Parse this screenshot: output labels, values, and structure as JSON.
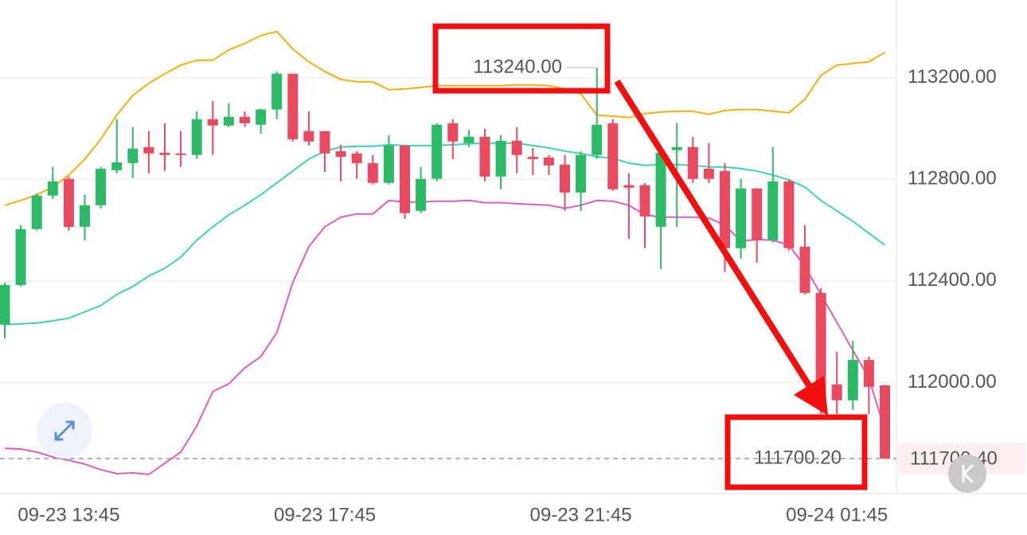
{
  "chart_data": {
    "type": "candlestick",
    "categories": [
      null,
      null,
      null,
      null,
      "09-23 13:45",
      null,
      null,
      null,
      null,
      null,
      null,
      null,
      null,
      null,
      null,
      null,
      null,
      null,
      null,
      null,
      "09-23 17:45",
      null,
      null,
      null,
      null,
      null,
      null,
      null,
      null,
      null,
      null,
      null,
      null,
      null,
      null,
      null,
      "09-23 21:45",
      null,
      null,
      null,
      null,
      null,
      null,
      null,
      null,
      null,
      null,
      null,
      null,
      null,
      null,
      null,
      "09-24 01:45",
      null,
      null,
      null
    ],
    "open": [
      112228,
      112384,
      112604,
      112736,
      112802,
      112613,
      112698,
      112836,
      112864,
      112927,
      112905,
      112902,
      112896,
      113037,
      113012,
      113046,
      113015,
      113075,
      113216,
      112990,
      112990,
      112911,
      112902,
      112864,
      112786,
      112933,
      112676,
      112802,
      113021,
      112943,
      112968,
      112811,
      112952,
      112889,
      112886,
      112858,
      112748,
      112896,
      113021,
      112777,
      112777,
      112613,
      112915,
      112927,
      112842,
      112833,
      112529,
      112764,
      112560,
      112792,
      112535,
      112353,
      111992,
      111930,
      112089,
      111989
    ],
    "high": [
      112394,
      112620,
      112745,
      112849,
      112811,
      112739,
      112849,
      113037,
      113006,
      112990,
      113021,
      112990,
      113068,
      113109,
      113100,
      113068,
      113078,
      113225,
      113216,
      113068,
      112990,
      112936,
      112911,
      112896,
      112974,
      112933,
      112849,
      113021,
      113037,
      112996,
      112999,
      112974,
      113006,
      112924,
      112896,
      112896,
      112911,
      113240,
      113037,
      112824,
      112786,
      112927,
      113021,
      112968,
      112943,
      112864,
      112802,
      112764,
      112927,
      112798,
      112620,
      112372,
      112121,
      112165,
      112102,
      111989
    ],
    "low": [
      112174,
      112378,
      112598,
      112723,
      112598,
      112560,
      112686,
      112824,
      112805,
      112824,
      112833,
      112849,
      112880,
      112896,
      113006,
      113006,
      112980,
      113037,
      112949,
      112933,
      112830,
      112792,
      112802,
      112780,
      112780,
      112645,
      112667,
      112792,
      112880,
      112927,
      112792,
      112761,
      112824,
      112817,
      112817,
      112676,
      112676,
      112880,
      112755,
      112566,
      112529,
      112447,
      112613,
      112786,
      112786,
      112435,
      112488,
      112472,
      112551,
      112519,
      112347,
      111876,
      111876,
      111892,
      111876,
      111700.2
    ],
    "close": [
      112384,
      112604,
      112736,
      112792,
      112613,
      112698,
      112842,
      112867,
      112921,
      112902,
      112896,
      112896,
      113037,
      113012,
      113046,
      113021,
      113075,
      113216,
      112958,
      112949,
      112902,
      112889,
      112864,
      112786,
      112933,
      112667,
      112802,
      113015,
      112949,
      112968,
      112811,
      112952,
      112896,
      112880,
      112855,
      112748,
      112896,
      113015,
      112761,
      112767,
      112654,
      112905,
      112927,
      112802,
      112802,
      112529,
      112764,
      112560,
      112792,
      112529,
      112353,
      111930,
      111930,
      112089,
      111983,
      111700.4
    ],
    "up_color": "#2dba67",
    "down_color": "#e84a5f",
    "bands": [
      {
        "color": "#f2b00c",
        "values": [
          112698,
          112717,
          112739,
          112770,
          112817,
          112880,
          112958,
          113053,
          113131,
          113178,
          113216,
          113250,
          113269,
          113269,
          113310,
          113335,
          113366,
          113382,
          113313,
          113263,
          113225,
          113194,
          113184,
          113184,
          113153,
          113156,
          113162,
          113169,
          113169,
          113169,
          113169,
          113169,
          113172,
          113172,
          113169,
          113156,
          113137,
          113053,
          113049,
          113043,
          113059,
          113065,
          113068,
          113068,
          113056,
          113071,
          113075,
          113075,
          113068,
          113062,
          113115,
          113209,
          113250,
          113256,
          113263,
          113300
        ]
      },
      {
        "color": "#3fd3ad",
        "values": [
          112228,
          112231,
          112234,
          112243,
          112253,
          112278,
          112303,
          112347,
          112378,
          112419,
          112450,
          112494,
          112560,
          112613,
          112660,
          112698,
          112739,
          112786,
          112833,
          112880,
          112911,
          112927,
          112930,
          112930,
          112936,
          112933,
          112933,
          112933,
          112936,
          112940,
          112943,
          112943,
          112943,
          112933,
          112924,
          112911,
          112902,
          112889,
          112883,
          112864,
          112855,
          112858,
          112858,
          112855,
          112849,
          112849,
          112842,
          112833,
          112817,
          112798,
          112770,
          112717,
          112676,
          112635,
          112588,
          112541
        ]
      },
      {
        "color": "#e15cbd",
        "values": [
          111741,
          111738,
          111726,
          111707,
          111694,
          111679,
          111657,
          111641,
          111644,
          111638,
          111682,
          111726,
          111829,
          111964,
          111995,
          112058,
          112102,
          112196,
          112394,
          112535,
          112613,
          112651,
          112664,
          112664,
          112717,
          112711,
          112711,
          112714,
          112714,
          112717,
          112708,
          112708,
          112704,
          112701,
          112698,
          112686,
          112698,
          112717,
          112714,
          112698,
          112660,
          112651,
          112651,
          112651,
          112648,
          112620,
          112557,
          112563,
          112560,
          112541,
          112457,
          112347,
          112237,
          112127,
          112017,
          111813
        ]
      }
    ],
    "ylim": [
      111550,
      113500
    ],
    "yticks": [
      {
        "value": 112000,
        "label": "112000.00"
      },
      {
        "value": 112400,
        "label": "112400.00"
      },
      {
        "value": 112800,
        "label": "112800.00"
      },
      {
        "value": 113200,
        "label": "113200.00"
      }
    ],
    "grid": true,
    "high_annotation": {
      "value": 113240,
      "label": "113240.00"
    },
    "low_annotation": {
      "value": 111700.2,
      "label": "111700.20"
    },
    "last_price": {
      "value": 111700.4,
      "label": "111700.40"
    }
  }
}
